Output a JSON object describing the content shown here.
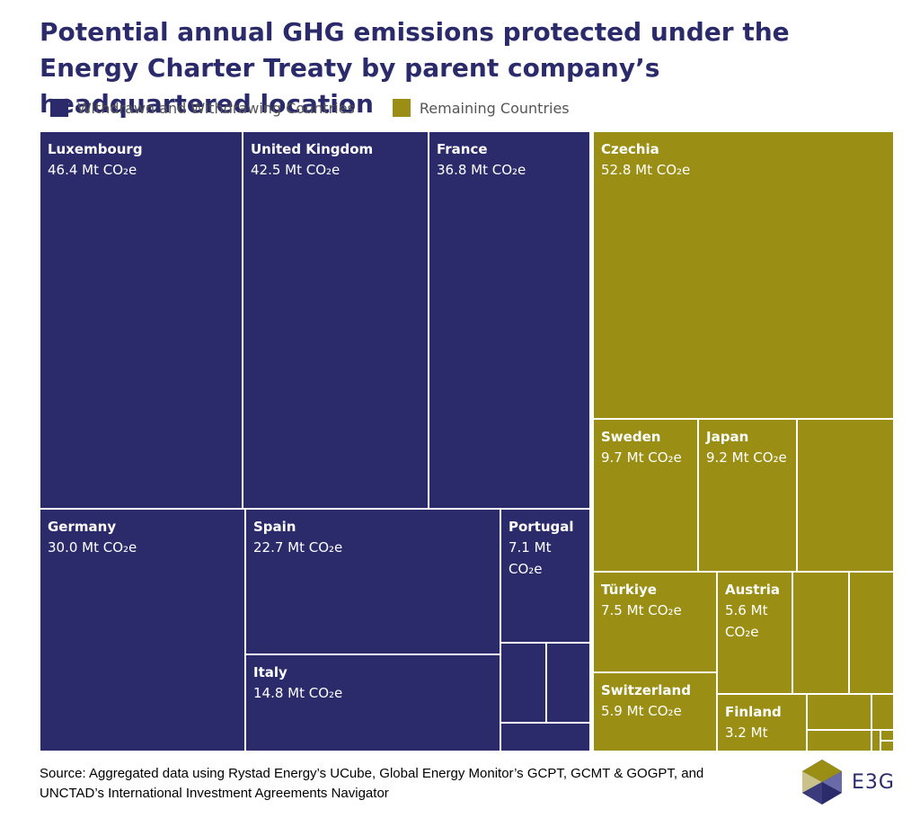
{
  "title": "Potential annual GHG emissions protected under the Energy Charter Treaty by parent company’s headquartered location",
  "legend": [
    {
      "label": "Withdrawn and Withdrawing Countries",
      "color": "#2b2a6b"
    },
    {
      "label": "Remaining Countries",
      "color": "#9a8f14"
    }
  ],
  "source": "Source: Aggregated data using Rystad Energy’s UCube, Global Energy Monitor’s GCPT, GCMT & GOGPT, and UNCTAD’s International Investment Agreements Navigator",
  "logo_text": "E3G",
  "chart_data": {
    "type": "treemap",
    "unit": "Mt CO₂e",
    "title": "Potential annual GHG emissions protected under the Energy Charter Treaty by parent company’s headquartered location",
    "groups": [
      {
        "name": "Withdrawn and Withdrawing Countries",
        "color": "#2b2a6b",
        "items": [
          {
            "name": "Luxembourg",
            "value": 46.4,
            "label": "46.4 Mt CO₂e"
          },
          {
            "name": "United Kingdom",
            "value": 42.5,
            "label": "42.5 Mt CO₂e"
          },
          {
            "name": "France",
            "value": 36.8,
            "label": "36.8 Mt CO₂e"
          },
          {
            "name": "Germany",
            "value": 30.0,
            "label": "30.0 Mt CO₂e"
          },
          {
            "name": "Spain",
            "value": 22.7,
            "label": "22.7 Mt CO₂e"
          },
          {
            "name": "Italy",
            "value": 14.8,
            "label": "14.8 Mt CO₂e"
          },
          {
            "name": "Portugal",
            "value": 7.1,
            "label": "7.1 Mt CO₂e"
          },
          {
            "name": "",
            "value": 1.7,
            "label": ""
          },
          {
            "name": "",
            "value": 1.5,
            "label": ""
          },
          {
            "name": "",
            "value": 1.0,
            "label": ""
          }
        ]
      },
      {
        "name": "Remaining Countries",
        "color": "#9a8f14",
        "items": [
          {
            "name": "Czechia",
            "value": 52.8,
            "label": "52.8 Mt CO₂e"
          },
          {
            "name": "Sweden",
            "value": 9.7,
            "label": "9.7 Mt CO₂e"
          },
          {
            "name": "Japan",
            "value": 9.2,
            "label": "9.2 Mt CO₂e"
          },
          {
            "name": "",
            "value": 8.2,
            "label": ""
          },
          {
            "name": "Türkiye",
            "value": 7.5,
            "label": "7.5 Mt CO₂e"
          },
          {
            "name": "Austria",
            "value": 5.6,
            "label": "5.6 Mt CO₂e"
          },
          {
            "name": "Switzerland",
            "value": 5.9,
            "label": "5.9 Mt CO₂e"
          },
          {
            "name": "Finland",
            "value": 3.2,
            "label": "3.2 Mt"
          },
          {
            "name": "",
            "value": 3.4,
            "label": ""
          },
          {
            "name": "",
            "value": 2.5,
            "label": ""
          },
          {
            "name": "",
            "value": 1.6,
            "label": ""
          },
          {
            "name": "",
            "value": 1.1,
            "label": ""
          },
          {
            "name": "",
            "value": 0.5,
            "label": ""
          },
          {
            "name": "",
            "value": 0.3,
            "label": ""
          },
          {
            "name": "",
            "value": 0.1,
            "label": ""
          },
          {
            "name": "",
            "value": 0.1,
            "label": ""
          }
        ]
      }
    ]
  }
}
